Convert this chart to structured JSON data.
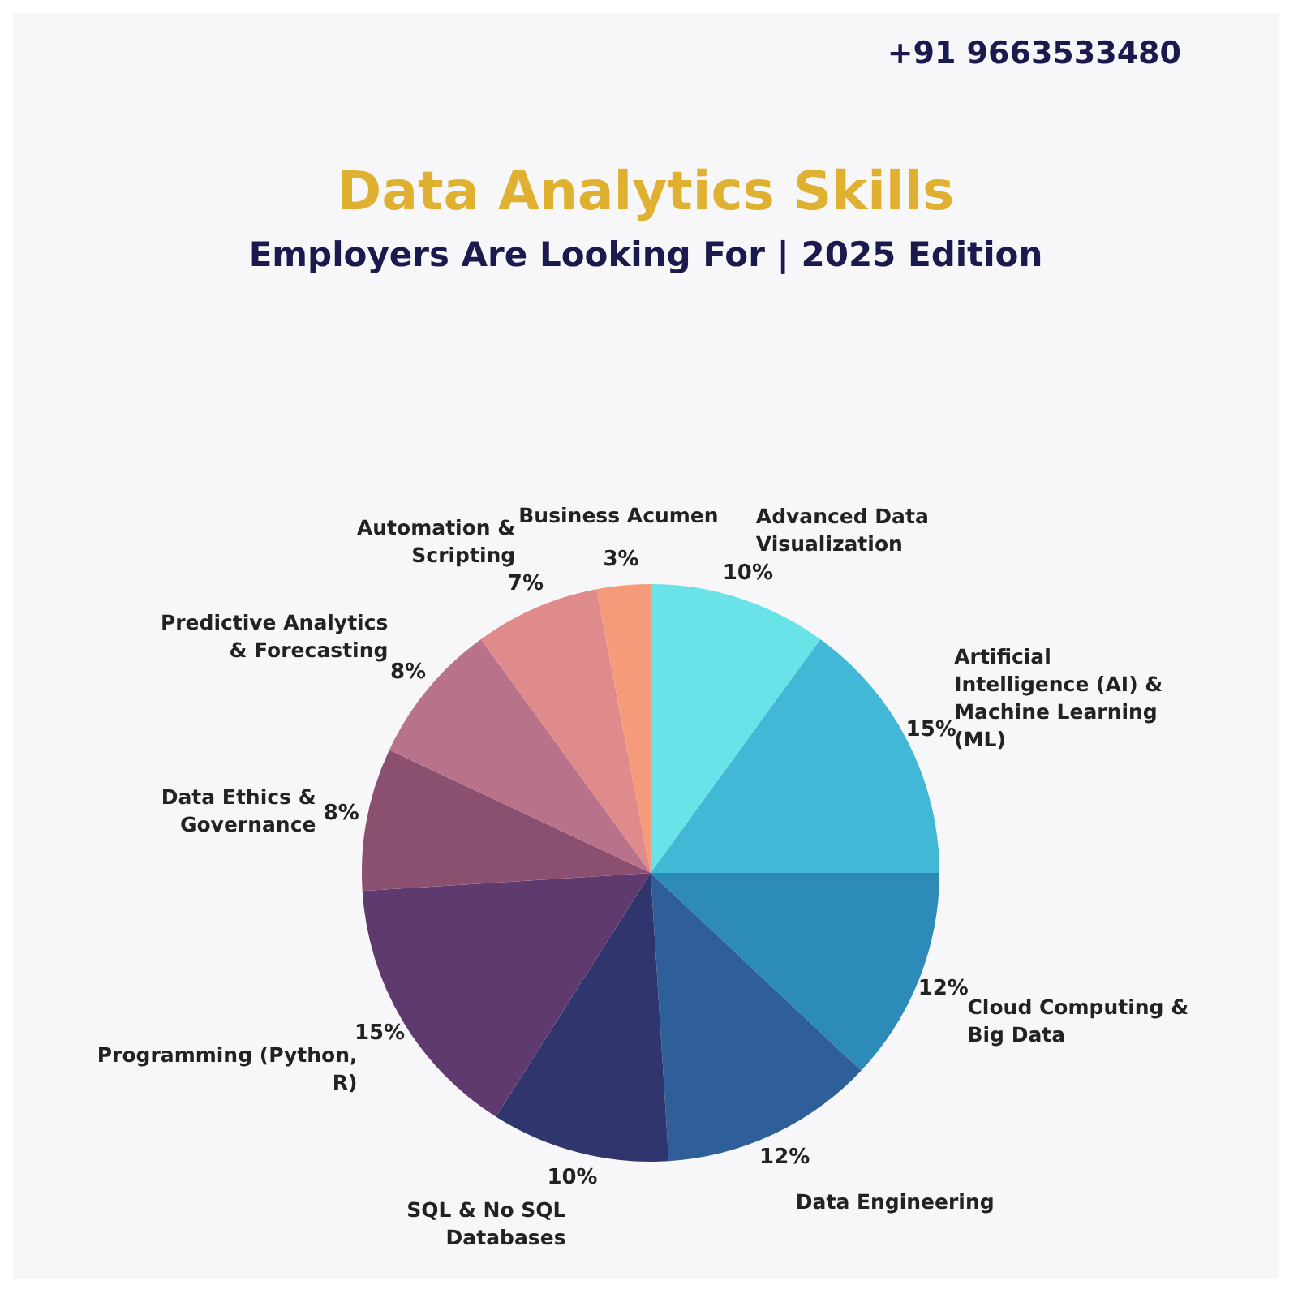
{
  "chart_data": {
    "type": "pie",
    "title": "Data Analytics Skills",
    "subtitle": "Employers Are Looking For | 2025 Edition",
    "annotations": [
      "+91 9663533480"
    ],
    "categories": [
      "Advanced Data Visualization",
      "Artificial Intelligence (AI) & Machine Learning (ML)",
      "Cloud Computing & Big Data",
      "Data Engineering",
      "SQL & No SQL Databases",
      "Programming (Python, R)",
      "Data Ethics & Governance",
      "Predictive Analytics & Forecasting",
      "Automation & Scripting",
      "Business Acumen"
    ],
    "values": [
      10,
      15,
      12,
      12,
      10,
      15,
      8,
      8,
      7,
      3
    ],
    "value_labels": [
      "10%",
      "15%",
      "12%",
      "12%",
      "10%",
      "15%",
      "8%",
      "8%",
      "7%",
      "3%"
    ],
    "colors": [
      "#6ae3e8",
      "#41b8d5",
      "#2d8bba",
      "#2f5f98",
      "#31356e",
      "#5e3a6e",
      "#8b4f70",
      "#b8738a",
      "#e08b8b",
      "#f59b7a"
    ],
    "legend": false
  }
}
